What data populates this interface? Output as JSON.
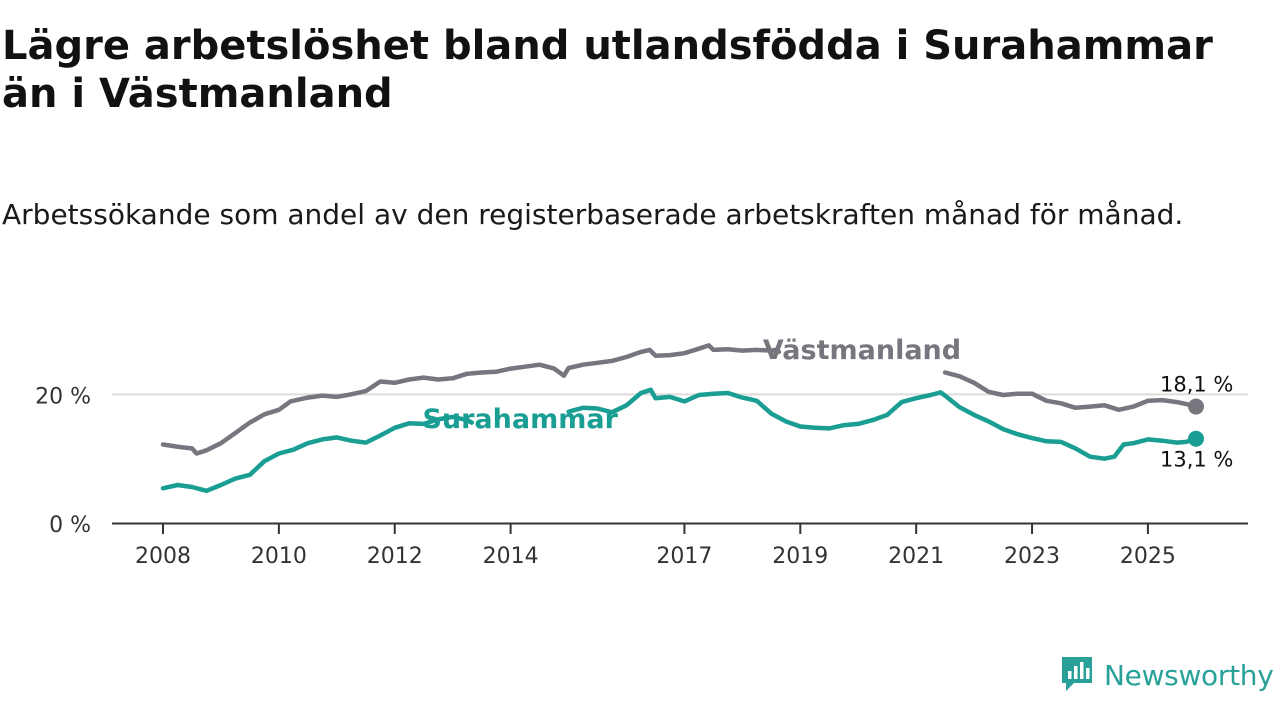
{
  "header": {
    "title": "Lägre arbetslöshet bland utlandsfödda i Surahammar än i Västmanland",
    "subtitle": "Arbetssökande som andel av den registerbaserade arbetskraften månad för månad."
  },
  "brand": {
    "name": "Newsworthy",
    "color": "#2aa198"
  },
  "chart_data": {
    "type": "line",
    "title": "Lägre arbetslöshet bland utlandsfödda i Surahammar än i Västmanland",
    "subtitle": "Arbetssökande som andel av den registerbaserade arbetskraften månad för månad.",
    "xlabel": "",
    "ylabel": "",
    "xlim": [
      2008.0,
      2025.83
    ],
    "ylim": [
      0,
      30
    ],
    "x_ticks": [
      2008,
      2010,
      2012,
      2014,
      2017,
      2019,
      2021,
      2023,
      2025
    ],
    "x_tick_labels": [
      "2008",
      "2010",
      "2012",
      "2014",
      "2017",
      "2019",
      "2021",
      "2023",
      "2025"
    ],
    "y_ticks": [
      0,
      20
    ],
    "y_tick_labels": [
      "0 %",
      "20 %"
    ],
    "gridlines": "horizontal at 20",
    "series": [
      {
        "name": "Västmanland",
        "color": "#77767f",
        "end_label": "18,1 %",
        "points": [
          [
            2008.0,
            12.2
          ],
          [
            2008.3,
            11.8
          ],
          [
            2008.5,
            11.6
          ],
          [
            2008.58,
            10.8
          ],
          [
            2008.75,
            11.3
          ],
          [
            2009.0,
            12.4
          ],
          [
            2009.25,
            14.0
          ],
          [
            2009.5,
            15.6
          ],
          [
            2009.75,
            16.9
          ],
          [
            2010.0,
            17.6
          ],
          [
            2010.2,
            18.9
          ],
          [
            2010.5,
            19.5
          ],
          [
            2010.75,
            19.8
          ],
          [
            2011.0,
            19.6
          ],
          [
            2011.25,
            20.0
          ],
          [
            2011.5,
            20.5
          ],
          [
            2011.75,
            22.0
          ],
          [
            2012.0,
            21.8
          ],
          [
            2012.25,
            22.3
          ],
          [
            2012.5,
            22.6
          ],
          [
            2012.75,
            22.3
          ],
          [
            2013.0,
            22.5
          ],
          [
            2013.25,
            23.2
          ],
          [
            2013.5,
            23.4
          ],
          [
            2013.75,
            23.5
          ],
          [
            2014.0,
            24.0
          ],
          [
            2014.25,
            24.3
          ],
          [
            2014.5,
            24.6
          ],
          [
            2014.75,
            24.0
          ],
          [
            2014.92,
            22.9
          ],
          [
            2015.0,
            24.1
          ],
          [
            2015.25,
            24.6
          ],
          [
            2015.5,
            24.9
          ],
          [
            2015.75,
            25.2
          ],
          [
            2016.0,
            25.8
          ],
          [
            2016.25,
            26.6
          ],
          [
            2016.4,
            26.9
          ],
          [
            2016.5,
            26.0
          ],
          [
            2016.75,
            26.1
          ],
          [
            2017.0,
            26.4
          ],
          [
            2017.25,
            27.1
          ],
          [
            2017.42,
            27.6
          ],
          [
            2017.5,
            26.9
          ],
          [
            2017.75,
            27.0
          ],
          [
            2018.0,
            26.8
          ],
          [
            2018.25,
            26.9
          ],
          [
            2018.5,
            26.8
          ],
          [
            2018.58,
            26.9
          ],
          [
            2018.63,
            26.6
          ],
          null,
          [
            2021.5,
            23.4
          ],
          [
            2021.75,
            22.8
          ],
          [
            2022.0,
            21.8
          ],
          [
            2022.25,
            20.4
          ],
          [
            2022.5,
            19.9
          ],
          [
            2022.75,
            20.1
          ],
          [
            2023.0,
            20.1
          ],
          [
            2023.25,
            19.0
          ],
          [
            2023.5,
            18.6
          ],
          [
            2023.75,
            17.9
          ],
          [
            2024.0,
            18.1
          ],
          [
            2024.25,
            18.3
          ],
          [
            2024.5,
            17.6
          ],
          [
            2024.75,
            18.1
          ],
          [
            2025.0,
            19.0
          ],
          [
            2025.25,
            19.1
          ],
          [
            2025.5,
            18.8
          ],
          [
            2025.66,
            18.5
          ],
          [
            2025.83,
            18.1
          ]
        ]
      },
      {
        "name": "Surahammar",
        "color": "#1a9e94",
        "end_label": "13,1 %",
        "points": [
          [
            2008.0,
            5.4
          ],
          [
            2008.25,
            5.9
          ],
          [
            2008.5,
            5.6
          ],
          [
            2008.75,
            5.0
          ],
          [
            2009.0,
            5.9
          ],
          [
            2009.25,
            6.9
          ],
          [
            2009.5,
            7.5
          ],
          [
            2009.75,
            9.6
          ],
          [
            2010.0,
            10.8
          ],
          [
            2010.25,
            11.4
          ],
          [
            2010.5,
            12.4
          ],
          [
            2010.75,
            13.0
          ],
          [
            2011.0,
            13.3
          ],
          [
            2011.25,
            12.8
          ],
          [
            2011.5,
            12.5
          ],
          [
            2011.75,
            13.6
          ],
          [
            2012.0,
            14.8
          ],
          [
            2012.25,
            15.5
          ],
          [
            2012.5,
            15.4
          ],
          [
            2012.75,
            16.1
          ],
          [
            2013.0,
            16.5
          ],
          [
            2013.25,
            16.0
          ],
          [
            2013.33,
            15.6
          ],
          null,
          [
            2015.0,
            17.3
          ],
          [
            2015.25,
            17.9
          ],
          [
            2015.5,
            17.8
          ],
          [
            2015.75,
            17.2
          ],
          [
            2016.0,
            18.3
          ],
          [
            2016.25,
            20.2
          ],
          [
            2016.42,
            20.7
          ],
          [
            2016.5,
            19.4
          ],
          [
            2016.75,
            19.6
          ],
          [
            2017.0,
            18.9
          ],
          [
            2017.25,
            19.9
          ],
          [
            2017.5,
            20.1
          ],
          [
            2017.75,
            20.2
          ],
          [
            2018.0,
            19.5
          ],
          [
            2018.25,
            19.0
          ],
          [
            2018.5,
            17.0
          ],
          [
            2018.75,
            15.8
          ],
          [
            2019.0,
            15.0
          ],
          [
            2019.25,
            14.8
          ],
          [
            2019.5,
            14.7
          ],
          [
            2019.75,
            15.2
          ],
          [
            2020.0,
            15.4
          ],
          [
            2020.25,
            16.0
          ],
          [
            2020.5,
            16.8
          ],
          [
            2020.75,
            18.8
          ],
          [
            2021.0,
            19.4
          ],
          [
            2021.25,
            19.9
          ],
          [
            2021.42,
            20.3
          ],
          [
            2021.5,
            19.8
          ],
          [
            2021.75,
            18.0
          ],
          [
            2022.0,
            16.8
          ],
          [
            2022.25,
            15.8
          ],
          [
            2022.5,
            14.6
          ],
          [
            2022.75,
            13.8
          ],
          [
            2023.0,
            13.2
          ],
          [
            2023.25,
            12.7
          ],
          [
            2023.5,
            12.6
          ],
          [
            2023.75,
            11.6
          ],
          [
            2024.0,
            10.3
          ],
          [
            2024.25,
            10.0
          ],
          [
            2024.42,
            10.3
          ],
          [
            2024.58,
            12.2
          ],
          [
            2024.75,
            12.4
          ],
          [
            2025.0,
            13.0
          ],
          [
            2025.25,
            12.8
          ],
          [
            2025.5,
            12.5
          ],
          [
            2025.66,
            12.6
          ],
          [
            2025.83,
            13.1
          ]
        ]
      }
    ],
    "line_labels": [
      {
        "series": "Västmanland",
        "text": "Västmanland"
      },
      {
        "series": "Surahammar",
        "text": "Surahammar"
      }
    ]
  }
}
